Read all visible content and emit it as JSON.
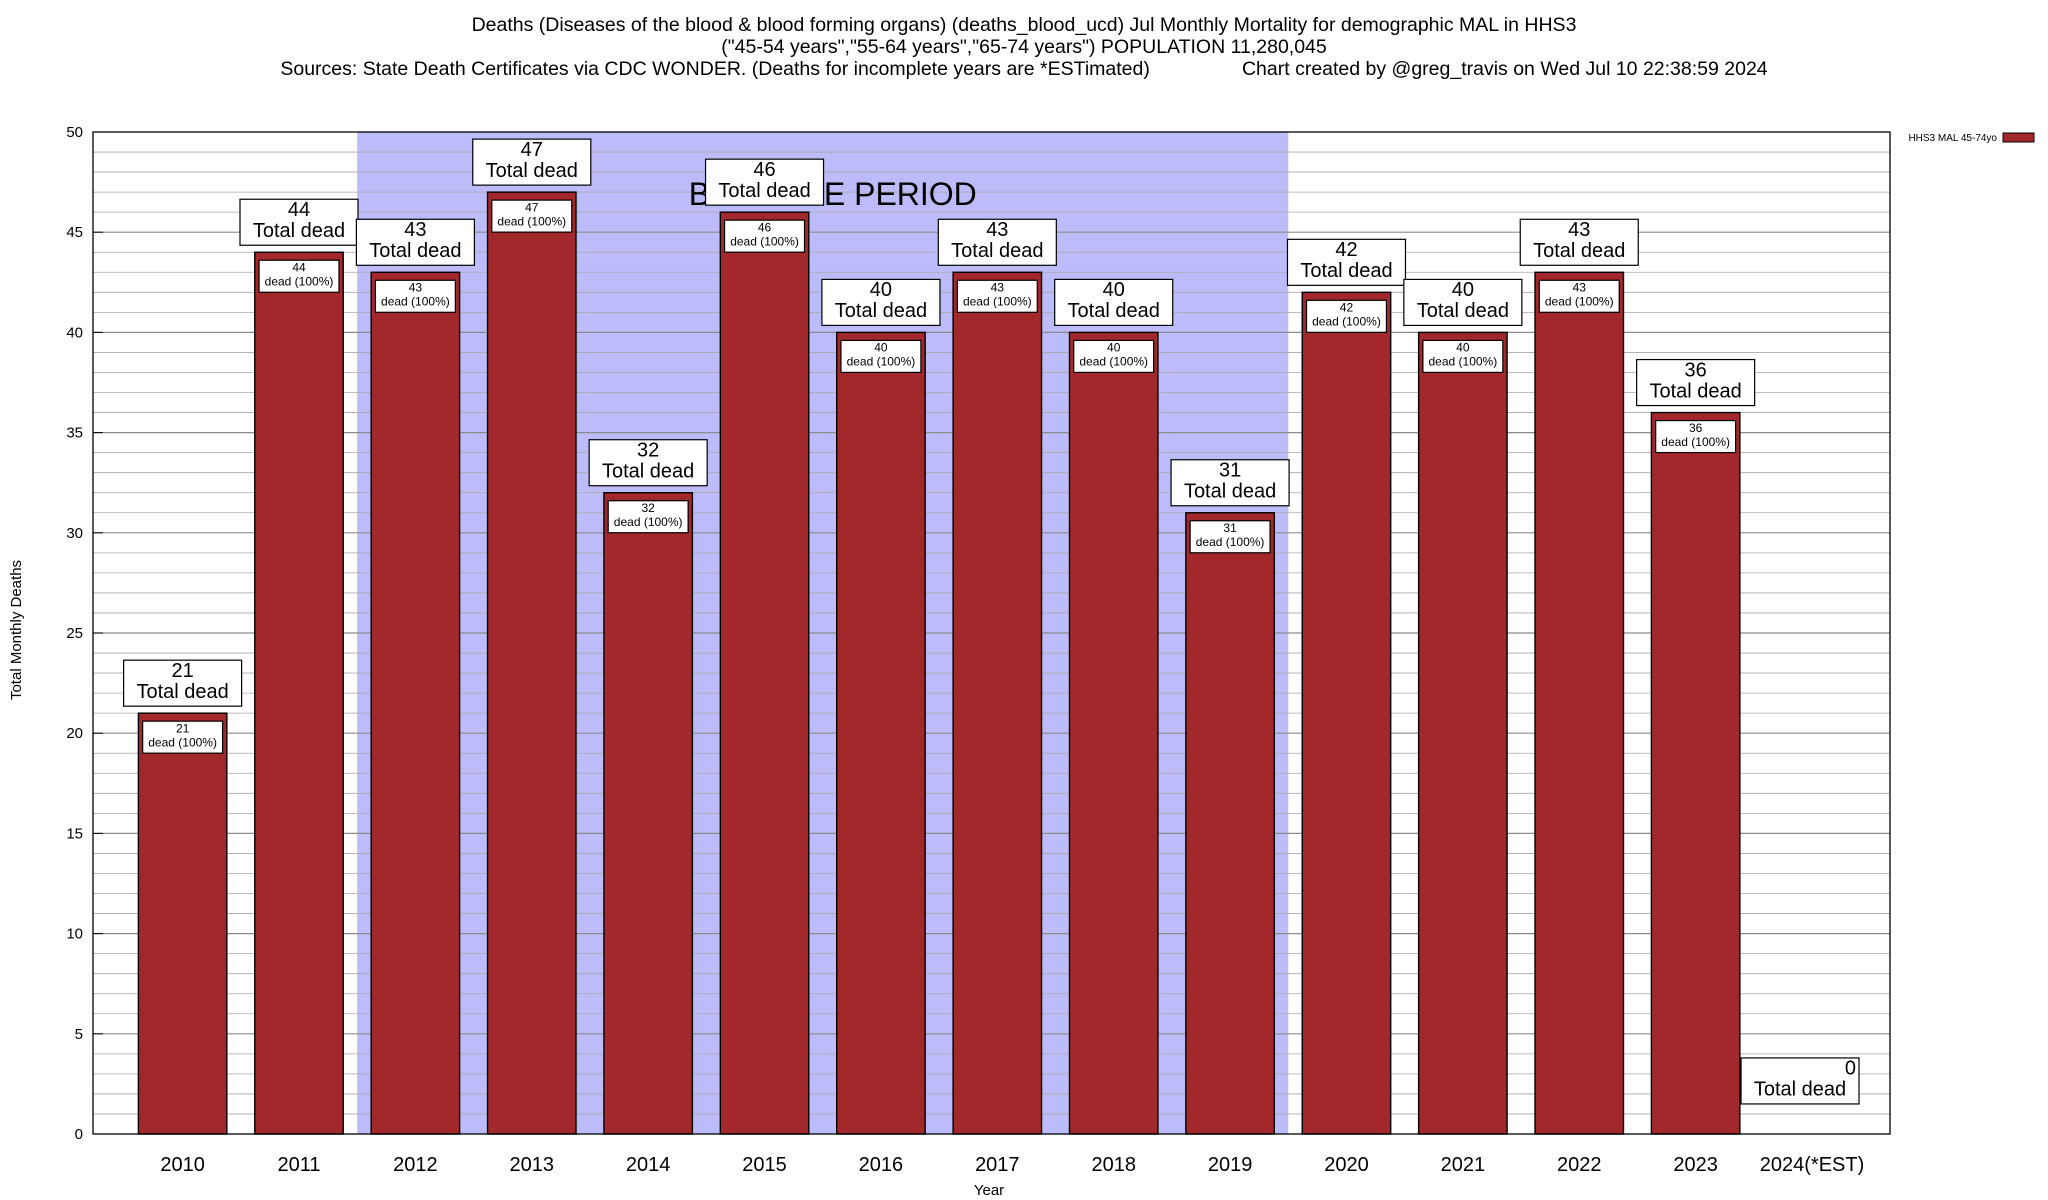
{
  "chart_data": {
    "type": "bar",
    "title": "Deaths (Diseases of the blood & blood forming organs) (deaths_blood_ucd) Jul Monthly Mortality for demographic MAL in HHS3",
    "subtitle": "(\"45-54 years\",\"55-64 years\",\"65-74 years\") POPULATION 11,280,045",
    "source_line": "Sources: State Death Certificates via CDC WONDER. (Deaths for incomplete years are *ESTimated)",
    "credit_line": "Chart created by @greg_travis on Wed Jul 10 22:38:59 2024",
    "xlabel": "Year",
    "ylabel": "Total Monthly Deaths",
    "ylim": [
      0,
      50
    ],
    "yticks": [
      0,
      5,
      10,
      15,
      20,
      25,
      30,
      35,
      40,
      45,
      50
    ],
    "minor_grid_step": 1,
    "grid": true,
    "legend": {
      "position": "top-right",
      "entries": [
        "HHS3 MAL 45-74yo"
      ]
    },
    "categories": [
      "2010",
      "2011",
      "2012",
      "2013",
      "2014",
      "2015",
      "2016",
      "2017",
      "2018",
      "2019",
      "2020",
      "2021",
      "2022",
      "2023",
      "2024(*EST)"
    ],
    "series": [
      {
        "name": "HHS3 MAL 45-74yo",
        "values": [
          21,
          44,
          43,
          47,
          32,
          46,
          40,
          43,
          40,
          31,
          42,
          40,
          43,
          36,
          0
        ]
      }
    ],
    "top_labels": [
      "21\nTotal dead",
      "44\nTotal dead",
      "43\nTotal dead",
      "47\nTotal dead",
      "32\nTotal dead",
      "46\nTotal dead",
      "40\nTotal dead",
      "43\nTotal dead",
      "40\nTotal dead",
      "31\nTotal dead",
      "42\nTotal dead",
      "40\nTotal dead",
      "43\nTotal dead",
      "36\nTotal dead",
      "0\nTotal dead"
    ],
    "inner_labels": [
      "21\ndead (100%)",
      "44\ndead (100%)",
      "43\ndead (100%)",
      "47\ndead (100%)",
      "32\ndead (100%)",
      "46\ndead (100%)",
      "40\ndead (100%)",
      "43\ndead (100%)",
      "40\ndead (100%)",
      "31\ndead (100%)",
      "42\ndead (100%)",
      "40\ndead (100%)",
      "43\ndead (100%)",
      "36\ndead (100%)",
      ""
    ],
    "baseline_period": {
      "label": "BASELINE PERIOD",
      "from": "2012",
      "to": "2019"
    },
    "colors": {
      "bar": "#a3282b",
      "baseline": "#bcbcfa",
      "grid": "#a8a8a8"
    }
  }
}
